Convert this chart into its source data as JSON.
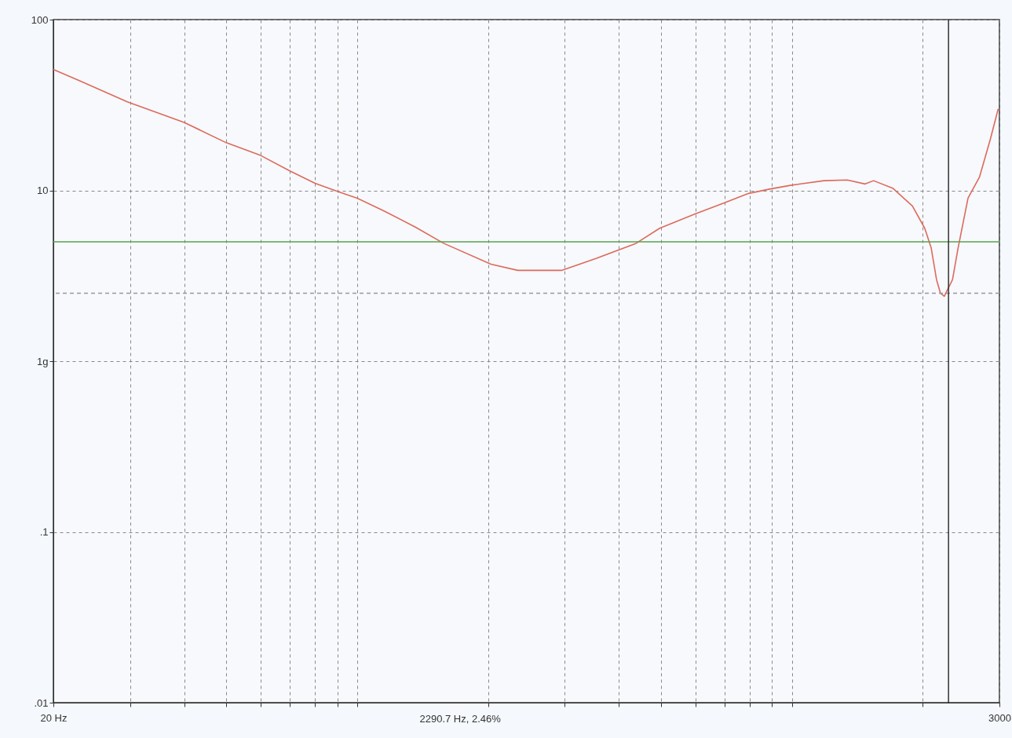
{
  "chart_data": {
    "type": "line",
    "x": [
      20,
      22.9,
      29.6,
      40,
      50,
      60,
      70,
      80,
      90.8,
      100,
      115,
      136,
      158,
      203,
      234,
      295,
      355,
      438,
      496,
      600,
      694,
      795,
      892,
      991,
      1185,
      1340,
      1473,
      1540,
      1705,
      1892,
      2020,
      2090,
      2150,
      2195,
      2240,
      2340,
      2410,
      2540,
      2700,
      2860,
      2980
    ],
    "series": [
      {
        "color": "#dd6a5c",
        "values": [
          51,
          44,
          33,
          25,
          19,
          16,
          13,
          11,
          9.8,
          9.0,
          7.6,
          6.1,
          4.9,
          3.7,
          3.4,
          3.4,
          4.0,
          4.9,
          6.0,
          7.3,
          8.4,
          9.6,
          10.2,
          10.7,
          11.4,
          11.5,
          10.9,
          11.4,
          10.3,
          8.1,
          6.0,
          4.6,
          3.0,
          2.5,
          2.4,
          3.0,
          4.6,
          9.0,
          12,
          20,
          30
        ]
      }
    ],
    "xlim": [
      20,
      3000
    ],
    "ylim": [
      0.01,
      100
    ],
    "xticks": [
      {
        "value": 20,
        "label": "20 Hz"
      },
      {
        "value": 30,
        "label": null
      },
      {
        "value": 40,
        "label": null
      },
      {
        "value": 50,
        "label": null
      },
      {
        "value": 60,
        "label": null
      },
      {
        "value": 70,
        "label": null
      },
      {
        "value": 80,
        "label": null
      },
      {
        "value": 90,
        "label": null
      },
      {
        "value": 100,
        "label": null
      },
      {
        "value": 200,
        "label": null
      },
      {
        "value": 300,
        "label": null
      },
      {
        "value": 400,
        "label": null
      },
      {
        "value": 500,
        "label": null
      },
      {
        "value": 600,
        "label": null
      },
      {
        "value": 700,
        "label": null
      },
      {
        "value": 800,
        "label": null
      },
      {
        "value": 900,
        "label": null
      },
      {
        "value": 1000,
        "label": null
      },
      {
        "value": 2000,
        "label": null
      },
      {
        "value": 3000,
        "label": "3000"
      }
    ],
    "yticks": [
      100,
      10,
      {
        "value": 1,
        "label": "1g"
      },
      {
        "value": 0.1,
        "label": ".1"
      },
      {
        "value": 0.01,
        "label": ".01"
      }
    ],
    "log": "xy",
    "grid": true,
    "marker": "none",
    "line_style": "solid",
    "ref_lines": [
      {
        "axis": "y",
        "value": 5,
        "color": "#5aa050",
        "line_style": "solid"
      },
      {
        "axis": "y",
        "value": 2.5,
        "color": "#999999",
        "line_style": "dashed"
      },
      {
        "axis": "x",
        "value": 2290.7,
        "color": "#222222",
        "line_style": "solid"
      }
    ],
    "annotations": [
      "2290.7 Hz,  2.46%"
    ]
  }
}
